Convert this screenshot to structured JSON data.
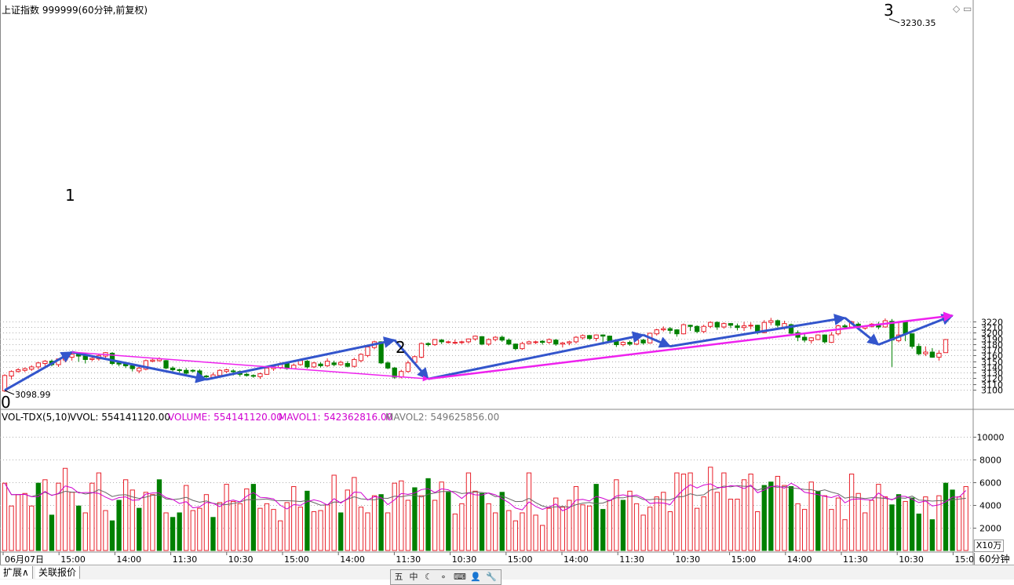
{
  "header": {
    "title": "上证指数 999999(60分钟,前复权)",
    "corner_icons": [
      "diamond-icon",
      "restore-icon"
    ]
  },
  "volume_header": {
    "indicator": "VOL-TDX(5,10)",
    "vvol_label": "VVOL: 554141120.00",
    "volume_label": "VOLUME: 554141120.00",
    "mavol1_label": "MAVOL1: 542362816.00",
    "mavol2_label": "MAVOL2: 549625856.00"
  },
  "annotations": {
    "label_0": "0",
    "label_1": "1",
    "label_2": "2",
    "label_3": "3",
    "low_value": "3098.99",
    "high_value": "3230.35"
  },
  "volume_unit": "X10万",
  "period": "60分钟",
  "tabs": [
    "扩展∧",
    "关联报价"
  ],
  "toolbar": [
    "五",
    "中",
    "☾",
    "∘",
    "⌨",
    "👤",
    "🔧"
  ],
  "colors": {
    "up": "#e8202a",
    "down": "#008000",
    "blue_line": "#3355cc",
    "magenta_line": "#ee22ee",
    "grid": "#b0b0b0",
    "vvol_label": "#000000",
    "volume_label": "#d000d0",
    "mavol1_label": "#d000d0",
    "mavol2_label": "#777777"
  },
  "chart_data": {
    "type": "candlestick",
    "price_axis": {
      "ticks": [
        3100,
        3110,
        3120,
        3130,
        3140,
        3150,
        3160,
        3170,
        3180,
        3190,
        3200,
        3210,
        3220
      ]
    },
    "volume_axis": {
      "ticks": [
        2000,
        4000,
        6000,
        8000,
        10000
      ],
      "unit": "X10万"
    },
    "x_tick_labels": [
      "06月07日",
      "15:00",
      "14:00",
      "11:30",
      "10:30",
      "15:00",
      "14:00",
      "11:30",
      "10:30",
      "15:00",
      "14:00",
      "11:30",
      "10:30",
      "15:00",
      "14:00",
      "11:30",
      "10:30",
      "15:00"
    ],
    "candles": [
      [
        3098,
        3125,
        3096,
        3127
      ],
      [
        3124,
        3132,
        3118,
        3134
      ],
      [
        3132,
        3135,
        3130,
        3138
      ],
      [
        3134,
        3137,
        3131,
        3139
      ],
      [
        3136,
        3140,
        3133,
        3143
      ],
      [
        3140,
        3147,
        3136,
        3149
      ],
      [
        3146,
        3150,
        3142,
        3152
      ],
      [
        3150,
        3144,
        3141,
        3153
      ],
      [
        3144,
        3154,
        3140,
        3155
      ],
      [
        3152,
        3158,
        3148,
        3160
      ],
      [
        3157,
        3162,
        3151,
        3166
      ],
      [
        3162,
        3159,
        3149,
        3166
      ],
      [
        3160,
        3153,
        3146,
        3161
      ],
      [
        3153,
        3155,
        3150,
        3158
      ],
      [
        3154,
        3160,
        3151,
        3162
      ],
      [
        3159,
        3165,
        3156,
        3166
      ],
      [
        3164,
        3146,
        3143,
        3166
      ],
      [
        3147,
        3145,
        3141,
        3150
      ],
      [
        3145,
        3142,
        3138,
        3148
      ],
      [
        3142,
        3137,
        3132,
        3144
      ],
      [
        3133,
        3138,
        3129,
        3140
      ],
      [
        3136,
        3151,
        3134,
        3153
      ],
      [
        3150,
        3152,
        3148,
        3154
      ],
      [
        3151,
        3154,
        3149,
        3157
      ],
      [
        3151,
        3138,
        3136,
        3152
      ],
      [
        3138,
        3135,
        3132,
        3141
      ],
      [
        3135,
        3134,
        3130,
        3137
      ],
      [
        3134,
        3129,
        3126,
        3138
      ],
      [
        3134,
        3133,
        3130,
        3136
      ],
      [
        3133,
        3126,
        3124,
        3136
      ],
      [
        3124,
        3123,
        3120,
        3126
      ],
      [
        3122,
        3126,
        3121,
        3130
      ],
      [
        3125,
        3134,
        3123,
        3136
      ],
      [
        3132,
        3135,
        3129,
        3137
      ],
      [
        3133,
        3132,
        3125,
        3136
      ],
      [
        3132,
        3127,
        3123,
        3134
      ],
      [
        3127,
        3125,
        3123,
        3130
      ],
      [
        3125,
        3124,
        3121,
        3127
      ],
      [
        3123,
        3128,
        3119,
        3130
      ],
      [
        3127,
        3138,
        3126,
        3140
      ],
      [
        3137,
        3140,
        3133,
        3143
      ],
      [
        3139,
        3145,
        3136,
        3148
      ],
      [
        3146,
        3137,
        3135,
        3149
      ],
      [
        3137,
        3143,
        3136,
        3146
      ],
      [
        3144,
        3151,
        3142,
        3153
      ],
      [
        3150,
        3140,
        3137,
        3152
      ],
      [
        3140,
        3147,
        3138,
        3149
      ],
      [
        3145,
        3142,
        3139,
        3148
      ],
      [
        3142,
        3150,
        3140,
        3155
      ],
      [
        3147,
        3144,
        3141,
        3151
      ],
      [
        3144,
        3148,
        3142,
        3151
      ],
      [
        3146,
        3141,
        3139,
        3150
      ],
      [
        3141,
        3153,
        3139,
        3156
      ],
      [
        3151,
        3162,
        3148,
        3164
      ],
      [
        3160,
        3175,
        3157,
        3177
      ],
      [
        3174,
        3184,
        3171,
        3186
      ],
      [
        3184,
        3147,
        3145,
        3185
      ],
      [
        3147,
        3138,
        3136,
        3150
      ],
      [
        3138,
        3122,
        3119,
        3140
      ],
      [
        3122,
        3132,
        3120,
        3135
      ],
      [
        3132,
        3147,
        3130,
        3151
      ],
      [
        3148,
        3158,
        3146,
        3160
      ],
      [
        3157,
        3181,
        3155,
        3183
      ],
      [
        3181,
        3179,
        3176,
        3183
      ],
      [
        3179,
        3188,
        3177,
        3189
      ],
      [
        3187,
        3184,
        3180,
        3189
      ],
      [
        3184,
        3184,
        3181,
        3186
      ],
      [
        3183,
        3183,
        3180,
        3188
      ],
      [
        3183,
        3184,
        3180,
        3186
      ],
      [
        3184,
        3189,
        3181,
        3190
      ],
      [
        3189,
        3194,
        3186,
        3195
      ],
      [
        3193,
        3180,
        3178,
        3194
      ],
      [
        3180,
        3188,
        3177,
        3190
      ],
      [
        3188,
        3192,
        3185,
        3194
      ],
      [
        3192,
        3187,
        3184,
        3195
      ],
      [
        3187,
        3180,
        3178,
        3190
      ],
      [
        3180,
        3172,
        3169,
        3181
      ],
      [
        3172,
        3181,
        3170,
        3184
      ],
      [
        3181,
        3184,
        3179,
        3186
      ],
      [
        3183,
        3184,
        3180,
        3186
      ],
      [
        3185,
        3183,
        3179,
        3187
      ],
      [
        3183,
        3188,
        3180,
        3190
      ],
      [
        3187,
        3180,
        3177,
        3189
      ],
      [
        3180,
        3182,
        3174,
        3184
      ],
      [
        3182,
        3184,
        3178,
        3186
      ],
      [
        3184,
        3192,
        3181,
        3194
      ],
      [
        3191,
        3195,
        3188,
        3197
      ],
      [
        3195,
        3190,
        3187,
        3196
      ],
      [
        3190,
        3196,
        3185,
        3197
      ],
      [
        3196,
        3194,
        3180,
        3197
      ],
      [
        3194,
        3185,
        3182,
        3195
      ],
      [
        3185,
        3179,
        3175,
        3187
      ],
      [
        3179,
        3183,
        3176,
        3185
      ],
      [
        3183,
        3180,
        3177,
        3186
      ],
      [
        3180,
        3187,
        3178,
        3189
      ],
      [
        3187,
        3182,
        3179,
        3189
      ],
      [
        3182,
        3199,
        3181,
        3200
      ],
      [
        3198,
        3205,
        3195,
        3207
      ],
      [
        3205,
        3207,
        3202,
        3211
      ],
      [
        3207,
        3204,
        3198,
        3210
      ],
      [
        3205,
        3198,
        3193,
        3206
      ],
      [
        3198,
        3214,
        3197,
        3216
      ],
      [
        3213,
        3211,
        3203,
        3214
      ],
      [
        3211,
        3202,
        3199,
        3213
      ],
      [
        3202,
        3211,
        3199,
        3214
      ],
      [
        3211,
        3218,
        3208,
        3220
      ],
      [
        3218,
        3210,
        3205,
        3220
      ],
      [
        3210,
        3216,
        3207,
        3218
      ],
      [
        3216,
        3213,
        3208,
        3217
      ],
      [
        3212,
        3209,
        3204,
        3216
      ],
      [
        3209,
        3212,
        3203,
        3219
      ],
      [
        3212,
        3213,
        3206,
        3218
      ],
      [
        3213,
        3200,
        3197,
        3214
      ],
      [
        3200,
        3218,
        3199,
        3222
      ],
      [
        3218,
        3221,
        3213,
        3226
      ],
      [
        3221,
        3213,
        3209,
        3223
      ],
      [
        3208,
        3216,
        3205,
        3221
      ],
      [
        3214,
        3199,
        3197,
        3216
      ],
      [
        3200,
        3192,
        3185,
        3204
      ],
      [
        3192,
        3187,
        3183,
        3198
      ],
      [
        3186,
        3191,
        3181,
        3192
      ],
      [
        3188,
        3196,
        3187,
        3197
      ],
      [
        3196,
        3184,
        3181,
        3197
      ],
      [
        3183,
        3196,
        3182,
        3201
      ],
      [
        3198,
        3212,
        3195,
        3214
      ],
      [
        3212,
        3210,
        3206,
        3215
      ],
      [
        3210,
        3219,
        3207,
        3221
      ],
      [
        3215,
        3209,
        3205,
        3218
      ],
      [
        3208,
        3211,
        3205,
        3213
      ],
      [
        3211,
        3215,
        3209,
        3217
      ],
      [
        3215,
        3210,
        3206,
        3219
      ],
      [
        3210,
        3221,
        3209,
        3225
      ],
      [
        3220,
        3187,
        3140,
        3224
      ],
      [
        3186,
        3196,
        3183,
        3220
      ],
      [
        3219,
        3198,
        3185,
        3220
      ],
      [
        3198,
        3176,
        3172,
        3199
      ],
      [
        3176,
        3163,
        3160,
        3181
      ],
      [
        3163,
        3166,
        3159,
        3176
      ],
      [
        3166,
        3157,
        3156,
        3173
      ],
      [
        3157,
        3164,
        3151,
        3169
      ],
      [
        3165,
        3188,
        3165,
        3188
      ]
    ],
    "volume": [
      [
        5900,
        0
      ],
      [
        3900,
        0
      ],
      [
        4900,
        0
      ],
      [
        5000,
        0
      ],
      [
        3900,
        0
      ],
      [
        5900,
        1
      ],
      [
        6200,
        0
      ],
      [
        3100,
        1
      ],
      [
        5900,
        0
      ],
      [
        7200,
        0
      ],
      [
        5100,
        0
      ],
      [
        3900,
        1
      ],
      [
        3300,
        0
      ],
      [
        5900,
        0
      ],
      [
        6800,
        0
      ],
      [
        3500,
        0
      ],
      [
        2600,
        1
      ],
      [
        4400,
        1
      ],
      [
        6200,
        0
      ],
      [
        5300,
        0
      ],
      [
        3700,
        1
      ],
      [
        5100,
        0
      ],
      [
        4900,
        0
      ],
      [
        6200,
        1
      ],
      [
        3300,
        0
      ],
      [
        2900,
        1
      ],
      [
        3300,
        1
      ],
      [
        5700,
        0
      ],
      [
        3500,
        0
      ],
      [
        3700,
        0
      ],
      [
        4900,
        0
      ],
      [
        2900,
        1
      ],
      [
        4200,
        0
      ],
      [
        5800,
        0
      ],
      [
        4300,
        0
      ],
      [
        4100,
        0
      ],
      [
        5400,
        0
      ],
      [
        5800,
        1
      ],
      [
        3700,
        0
      ],
      [
        4100,
        0
      ],
      [
        3600,
        0
      ],
      [
        2600,
        0
      ],
      [
        4200,
        0
      ],
      [
        5600,
        0
      ],
      [
        3800,
        0
      ],
      [
        5200,
        1
      ],
      [
        3400,
        0
      ],
      [
        3500,
        0
      ],
      [
        4000,
        0
      ],
      [
        6600,
        0
      ],
      [
        3300,
        1
      ],
      [
        5300,
        0
      ],
      [
        6400,
        0
      ],
      [
        3800,
        0
      ],
      [
        3300,
        0
      ],
      [
        4800,
        0
      ],
      [
        4900,
        1
      ],
      [
        3300,
        0
      ],
      [
        5900,
        0
      ],
      [
        6100,
        0
      ],
      [
        4400,
        0
      ],
      [
        5500,
        1
      ],
      [
        4800,
        0
      ],
      [
        6300,
        1
      ],
      [
        4400,
        0
      ],
      [
        6000,
        0
      ],
      [
        5100,
        1
      ],
      [
        3200,
        0
      ],
      [
        4100,
        0
      ],
      [
        6800,
        0
      ],
      [
        5200,
        0
      ],
      [
        5000,
        1
      ],
      [
        4100,
        0
      ],
      [
        3300,
        0
      ],
      [
        5100,
        1
      ],
      [
        3500,
        0
      ],
      [
        2600,
        0
      ],
      [
        3300,
        0
      ],
      [
        6800,
        0
      ],
      [
        3100,
        0
      ],
      [
        2200,
        0
      ],
      [
        3700,
        0
      ],
      [
        4600,
        0
      ],
      [
        3800,
        0
      ],
      [
        4400,
        0
      ],
      [
        5600,
        0
      ],
      [
        4000,
        0
      ],
      [
        3900,
        0
      ],
      [
        5800,
        1
      ],
      [
        3600,
        1
      ],
      [
        4400,
        0
      ],
      [
        6200,
        0
      ],
      [
        4400,
        1
      ],
      [
        5200,
        0
      ],
      [
        4100,
        0
      ],
      [
        3100,
        0
      ],
      [
        3800,
        0
      ],
      [
        4700,
        0
      ],
      [
        5100,
        0
      ],
      [
        3400,
        0
      ],
      [
        6800,
        0
      ],
      [
        6700,
        0
      ],
      [
        6800,
        0
      ],
      [
        3700,
        0
      ],
      [
        4700,
        0
      ],
      [
        7300,
        0
      ],
      [
        5100,
        0
      ],
      [
        6800,
        0
      ],
      [
        4500,
        0
      ],
      [
        4500,
        0
      ],
      [
        6200,
        0
      ],
      [
        6700,
        0
      ],
      [
        3400,
        0
      ],
      [
        5700,
        1
      ],
      [
        6000,
        1
      ],
      [
        6500,
        0
      ],
      [
        5700,
        0
      ],
      [
        5600,
        1
      ],
      [
        4100,
        0
      ],
      [
        3600,
        0
      ],
      [
        6000,
        0
      ],
      [
        5200,
        1
      ],
      [
        4800,
        0
      ],
      [
        3600,
        0
      ],
      [
        4600,
        0
      ],
      [
        2700,
        0
      ],
      [
        6700,
        0
      ],
      [
        5000,
        0
      ],
      [
        3300,
        0
      ],
      [
        4400,
        0
      ],
      [
        5800,
        0
      ],
      [
        4700,
        0
      ],
      [
        4000,
        1
      ],
      [
        4900,
        1
      ],
      [
        4300,
        0
      ],
      [
        4600,
        1
      ],
      [
        3200,
        1
      ],
      [
        4700,
        0
      ],
      [
        2700,
        1
      ],
      [
        4800,
        0
      ],
      [
        5900,
        1
      ],
      [
        5300,
        1
      ],
      [
        4700,
        0
      ],
      [
        5600,
        0
      ]
    ],
    "arrows": [
      {
        "color": "blue",
        "from": [
          0,
          3099
        ],
        "to": [
          10,
          3166
        ]
      },
      {
        "color": "blue",
        "from": [
          10,
          3166
        ],
        "to": [
          30,
          3118
        ]
      },
      {
        "color": "blue",
        "from": [
          30,
          3118
        ],
        "to": [
          58,
          3187
        ]
      },
      {
        "color": "blue",
        "from": [
          58,
          3187
        ],
        "to": [
          63,
          3119
        ]
      },
      {
        "color": "blue",
        "from": [
          63,
          3119
        ],
        "to": [
          95,
          3196
        ]
      },
      {
        "color": "blue",
        "from": [
          95,
          3196
        ],
        "to": [
          99,
          3176
        ]
      },
      {
        "color": "blue",
        "from": [
          99,
          3176
        ],
        "to": [
          125,
          3226
        ]
      },
      {
        "color": "blue",
        "from": [
          125,
          3226
        ],
        "to": [
          130,
          3179
        ]
      },
      {
        "color": "blue",
        "from": [
          130,
          3179
        ],
        "to": [
          141,
          3230
        ]
      },
      {
        "color": "magenta",
        "from": [
          10,
          3166
        ],
        "to": [
          63,
          3119
        ]
      },
      {
        "color": "magenta",
        "from": [
          63,
          3119
        ],
        "to": [
          141,
          3230
        ]
      }
    ]
  }
}
